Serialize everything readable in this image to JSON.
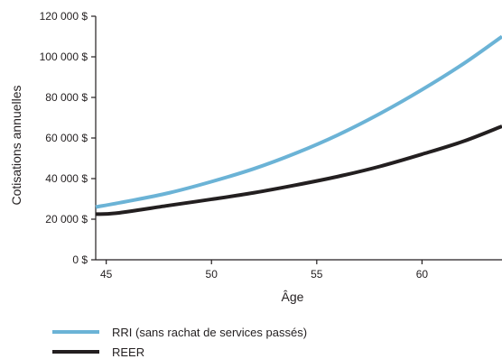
{
  "chart_data": {
    "type": "line",
    "title": "",
    "xlabel": "Âge",
    "ylabel": "Cotisations annuelles",
    "xlim": [
      44.5,
      63.8
    ],
    "ylim": [
      0,
      120000
    ],
    "x_ticks": [
      {
        "value": 45,
        "label": "45"
      },
      {
        "value": 50,
        "label": "50"
      },
      {
        "value": 55,
        "label": "55"
      },
      {
        "value": 60,
        "label": "60"
      }
    ],
    "y_ticks": [
      {
        "value": 0,
        "label": "0 $"
      },
      {
        "value": 20000,
        "label": "20 000 $"
      },
      {
        "value": 40000,
        "label": "40 000 $"
      },
      {
        "value": 60000,
        "label": "60 000 $"
      },
      {
        "value": 80000,
        "label": "80 000 $"
      },
      {
        "value": 100000,
        "label": "100 000 $"
      },
      {
        "value": 120000,
        "label": "120 000 $"
      }
    ],
    "grid": false,
    "legend_position": "bottom-left",
    "series": [
      {
        "name": "RRI (sans rachat de services passés)",
        "color": "#6bb3d6",
        "points": [
          [
            44.5,
            26000
          ],
          [
            46,
            28800
          ],
          [
            48,
            33000
          ],
          [
            50,
            38500
          ],
          [
            52,
            44800
          ],
          [
            54,
            52500
          ],
          [
            56,
            61500
          ],
          [
            58,
            72000
          ],
          [
            60,
            83800
          ],
          [
            62,
            96800
          ],
          [
            63.8,
            110000
          ]
        ]
      },
      {
        "name": "REER",
        "color": "#231f20",
        "points": [
          [
            44.5,
            22500
          ],
          [
            45.5,
            23000
          ],
          [
            48,
            26800
          ],
          [
            50,
            29800
          ],
          [
            52,
            33000
          ],
          [
            54,
            36800
          ],
          [
            56,
            41000
          ],
          [
            58,
            46000
          ],
          [
            60,
            52000
          ],
          [
            62,
            58500
          ],
          [
            63.8,
            65800
          ]
        ]
      }
    ]
  }
}
